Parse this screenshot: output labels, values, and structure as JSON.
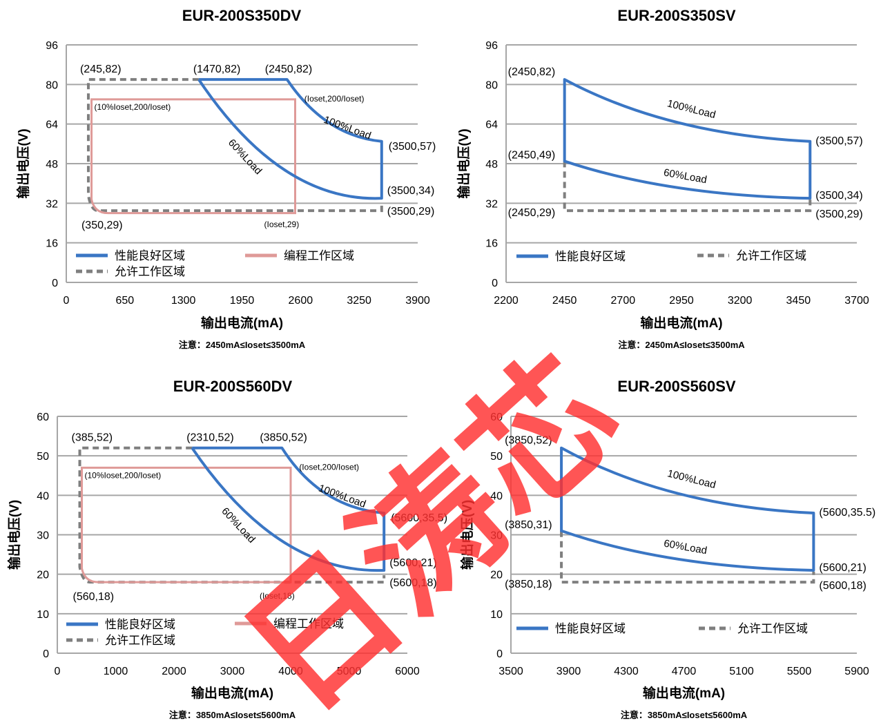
{
  "colors": {
    "good": "#3a76c4",
    "program": "#df9a98",
    "allowed": "#7f7f7f",
    "grid": "#a6a6a6",
    "watermark": "#ff3030"
  },
  "watermark": {
    "text": "日涛芯"
  },
  "chart_data": [
    {
      "type": "line",
      "title": "EUR-200S350DV",
      "xlabel": "输出电流(mA)",
      "ylabel": "输出电压(V)",
      "xlim": [
        0,
        3900
      ],
      "ylim": [
        0,
        96
      ],
      "xticks": [
        0,
        650,
        1300,
        1950,
        2600,
        3250,
        3900
      ],
      "yticks": [
        0,
        16,
        32,
        48,
        64,
        80,
        96
      ],
      "grid": true,
      "note": "注意：2450mA≤Ioset≤3500mA",
      "legend": [
        {
          "key": "good",
          "label": "性能良好区域"
        },
        {
          "key": "program",
          "label": "编程工作区域"
        },
        {
          "key": "allowed",
          "label": "允许工作区域"
        }
      ],
      "regions": {
        "good": {
          "p_start": 1470,
          "p_end": 3500,
          "v_top": 82,
          "v_bottom": 34,
          "i_knee": 2450,
          "i_max": 3500,
          "v_max_end": 57
        },
        "program": {
          "x0": 280,
          "x1": 2540,
          "y_top": 74,
          "y_bottom": 28
        },
        "allowed": {
          "x_left": 245,
          "y_top": 82,
          "x_right": 3500,
          "y_bottom": 29,
          "corner_x": 350
        }
      },
      "labels": {
        "p1": "(245,82)",
        "p2": "(1470,82)",
        "p3": "(2450,82)",
        "p4": "(Ioset,200/Ioset)",
        "p5": "(10%Ioset,200/Ioset)",
        "p6": "(3500,57)",
        "p7": "(3500,34)",
        "p8": "(3500,29)",
        "p9": "(350,29)",
        "p10": "(Ioset,29)",
        "load100": "100%Load",
        "load60": "60%Load"
      }
    },
    {
      "type": "line",
      "title": "EUR-200S350SV",
      "xlabel": "输出电流(mA)",
      "ylabel": "输出电压(V)",
      "xlim": [
        2200,
        3700
      ],
      "ylim": [
        0,
        96
      ],
      "xticks": [
        2200,
        2450,
        2700,
        2950,
        3200,
        3450,
        3700
      ],
      "yticks": [
        0,
        16,
        32,
        48,
        64,
        80,
        96
      ],
      "grid": true,
      "note": "注意：2450mA≤Ioset≤3500mA",
      "legend": [
        {
          "key": "good",
          "label": "性能良好区域"
        },
        {
          "key": "allowed",
          "label": "允许工作区域"
        }
      ],
      "regions": {
        "good": {
          "i_min": 2450,
          "i_max": 3500,
          "v_top_start": 82,
          "v_top_end": 57,
          "v_bot_start": 49,
          "v_bot_end": 34
        },
        "allowed": {
          "x_left": 2450,
          "x_right": 3500,
          "y_bottom": 29
        }
      },
      "labels": {
        "p1": "(2450,82)",
        "p2": "(2450,49)",
        "p3": "(2450,29)",
        "p4": "(3500,57)",
        "p5": "(3500,34)",
        "p6": "(3500,29)",
        "load100": "100%Load",
        "load60": "60%Load"
      }
    },
    {
      "type": "line",
      "title": "EUR-200S560DV",
      "xlabel": "输出电流(mA)",
      "ylabel": "输出电压(V)",
      "xlim": [
        0,
        6000
      ],
      "ylim": [
        0,
        60
      ],
      "xticks": [
        0,
        1000,
        2000,
        3000,
        4000,
        5000,
        6000
      ],
      "yticks": [
        0,
        10,
        20,
        30,
        40,
        50,
        60
      ],
      "grid": true,
      "note": "注意：3850mA≤Ioset≤5600mA",
      "legend": [
        {
          "key": "good",
          "label": "性能良好区域"
        },
        {
          "key": "program",
          "label": "编程工作区域"
        },
        {
          "key": "allowed",
          "label": "允许工作区域"
        }
      ],
      "regions": {
        "good": {
          "p_start": 2310,
          "p_end": 5600,
          "v_top": 52,
          "v_bottom": 21,
          "i_knee": 3850,
          "i_max": 5600,
          "v_max_end": 35.5
        },
        "program": {
          "x0": 420,
          "x1": 4000,
          "y_top": 47,
          "y_bottom": 18
        },
        "allowed": {
          "x_left": 385,
          "y_top": 52,
          "x_right": 5600,
          "y_bottom": 18,
          "corner_x": 560
        }
      },
      "labels": {
        "p1": "(385,52)",
        "p2": "(2310,52)",
        "p3": "(3850,52)",
        "p4": "(Ioset,200/Ioset)",
        "p5": "(10%Ioset,200/Ioset)",
        "p6": "(5600,35.5)",
        "p7": "(5600,21)",
        "p8": "(5600,18)",
        "p9": "(560,18)",
        "p10": "(Ioset,18)",
        "load100": "100%Load",
        "load60": "60%Load"
      }
    },
    {
      "type": "line",
      "title": "EUR-200S560SV",
      "xlabel": "输出电流(mA)",
      "ylabel": "输出电压(V)",
      "xlim": [
        3500,
        5900
      ],
      "ylim": [
        0,
        60
      ],
      "xticks": [
        3500,
        3900,
        4300,
        4700,
        5100,
        5500,
        5900
      ],
      "yticks": [
        0,
        10,
        20,
        30,
        40,
        50,
        60
      ],
      "grid": true,
      "note": "注意：3850mA≤Ioset≤5600mA",
      "legend": [
        {
          "key": "good",
          "label": "性能良好区域"
        },
        {
          "key": "allowed",
          "label": "允许工作区域"
        }
      ],
      "regions": {
        "good": {
          "i_min": 3850,
          "i_max": 5600,
          "v_top_start": 52,
          "v_top_end": 35.5,
          "v_bot_start": 31,
          "v_bot_end": 21
        },
        "allowed": {
          "x_left": 3850,
          "x_right": 5600,
          "y_bottom": 18
        }
      },
      "labels": {
        "p1": "(3850,52)",
        "p2": "(3850,31)",
        "p3": "(3850,18)",
        "p4": "(5600,35.5)",
        "p5": "(5600,21)",
        "p6": "(5600,18)",
        "load100": "100%Load",
        "load60": "60%Load"
      }
    }
  ]
}
